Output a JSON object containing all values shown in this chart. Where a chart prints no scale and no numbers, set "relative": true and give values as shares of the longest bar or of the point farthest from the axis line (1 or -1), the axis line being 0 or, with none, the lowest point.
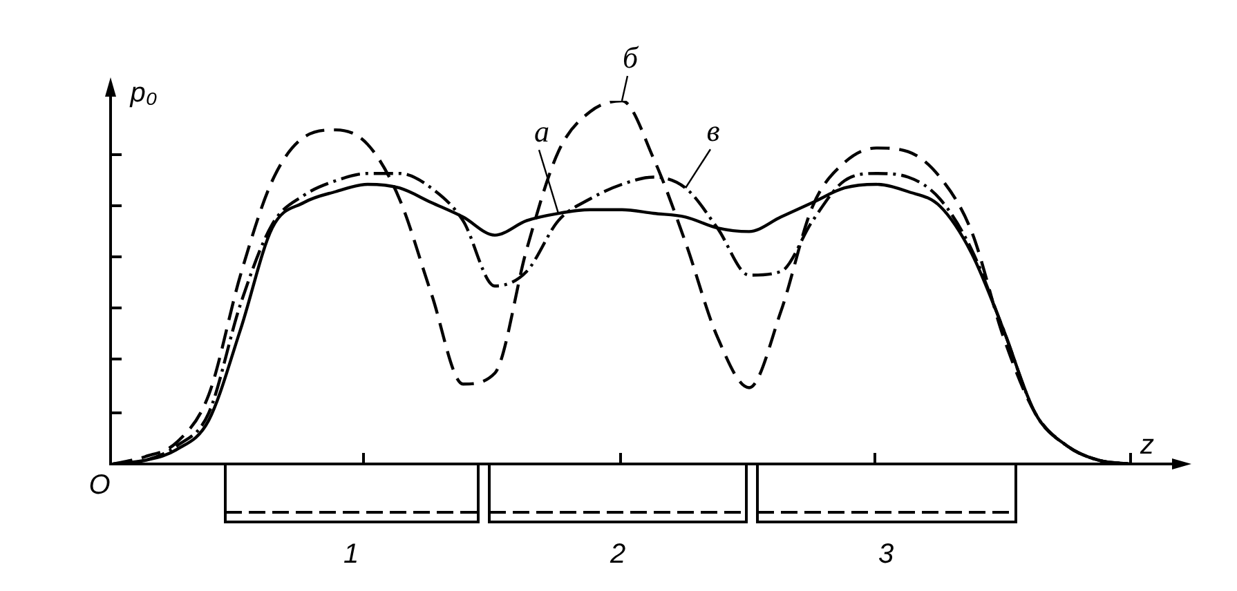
{
  "chart_data": {
    "type": "line",
    "relative": true,
    "xlabel": "z",
    "ylabel": "p₀",
    "annotations": [
      "O",
      "1",
      "2",
      "3"
    ],
    "legend": false,
    "marker": "none",
    "categories": [
      null,
      null,
      null,
      null,
      null,
      null,
      null,
      null,
      null,
      null,
      null,
      null,
      null,
      null,
      null,
      null,
      null,
      null,
      null,
      null,
      null,
      null,
      null,
      null,
      null,
      null,
      null,
      null,
      null,
      null,
      null,
      null,
      null
    ],
    "series": [
      {
        "name": "а",
        "color": "#000000",
        "line_style": "solid",
        "values": [
          0,
          0.01,
          0.04,
          0.12,
          0.37,
          0.65,
          0.72,
          0.75,
          0.77,
          0.76,
          0.72,
          0.68,
          0.63,
          0.67,
          0.69,
          0.7,
          0.7,
          0.69,
          0.68,
          0.65,
          0.64,
          0.68,
          0.72,
          0.76,
          0.77,
          0.75,
          0.71,
          0.58,
          0.37,
          0.14,
          0.05,
          0.01,
          0
        ]
      },
      {
        "name": "б",
        "color": "#000000",
        "line_style": "dashed",
        "values": [
          0,
          0.02,
          0.06,
          0.19,
          0.52,
          0.78,
          0.9,
          0.92,
          0.88,
          0.73,
          0.47,
          0.22,
          0.25,
          0.59,
          0.86,
          0.97,
          1,
          0.84,
          0.61,
          0.35,
          0.21,
          0.42,
          0.71,
          0.83,
          0.87,
          0.86,
          0.79,
          0.64,
          0.35,
          0.14,
          0.05,
          0.01,
          0
        ]
      },
      {
        "name": "в",
        "color": "#000000",
        "line_style": "dashdot",
        "values": [
          0,
          0.01,
          0.05,
          0.14,
          0.44,
          0.66,
          0.74,
          0.78,
          0.8,
          0.8,
          0.76,
          0.67,
          0.49,
          0.53,
          0.67,
          0.73,
          0.77,
          0.79,
          0.76,
          0.65,
          0.52,
          0.53,
          0.67,
          0.78,
          0.8,
          0.79,
          0.73,
          0.59,
          0.37,
          0.14,
          0.05,
          0.01,
          0
        ]
      }
    ]
  }
}
